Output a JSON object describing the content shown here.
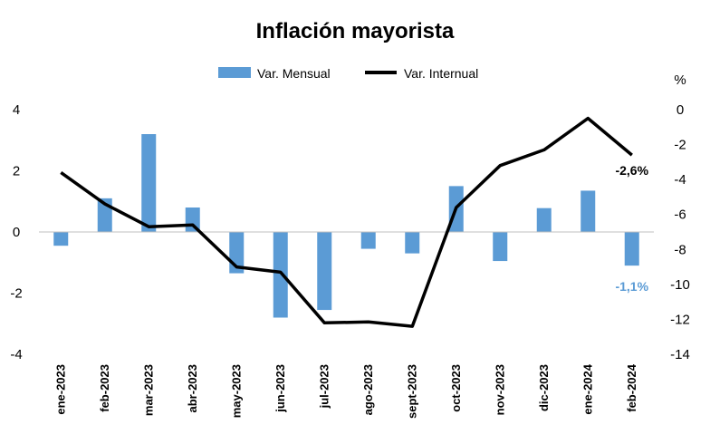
{
  "chart_data": {
    "type": "bar+line",
    "title": "Inflación mayorista",
    "categories": [
      "ene-2023",
      "feb-2023",
      "mar-2023",
      "abr-2023",
      "may-2023",
      "jun-2023",
      "jul-2023",
      "ago-2023",
      "sept-2023",
      "oct-2023",
      "nov-2023",
      "dic-2023",
      "ene-2024",
      "feb-2024"
    ],
    "series": [
      {
        "name": "Var. Mensual",
        "type": "bar",
        "axis": "left",
        "color": "#5b9bd5",
        "values": [
          -0.45,
          1.1,
          3.2,
          0.8,
          -1.35,
          -2.8,
          -2.55,
          -0.55,
          -0.7,
          1.5,
          -0.95,
          0.78,
          1.35,
          -1.1
        ]
      },
      {
        "name": "Var. Internual",
        "type": "line",
        "axis": "right",
        "color": "#000000",
        "values": [
          -3.6,
          -5.4,
          -6.7,
          -6.6,
          -9.0,
          -9.3,
          -12.2,
          -12.15,
          -12.4,
          -5.6,
          -3.2,
          -2.3,
          -0.5,
          -2.6
        ]
      }
    ],
    "y_left": {
      "min": -4,
      "max": 4,
      "ticks": [
        4,
        2,
        0,
        -2,
        -4
      ]
    },
    "y_right": {
      "min": -14,
      "max": 0,
      "ticks": [
        0,
        -2,
        -4,
        -6,
        -8,
        -10,
        -12,
        -14
      ],
      "unit_label": "%"
    },
    "annotations": [
      {
        "text": "-2,6%",
        "series": "Var. Internual",
        "index": 13,
        "color": "#000000"
      },
      {
        "text": "-1,1%",
        "series": "Var. Mensual",
        "index": 13,
        "color": "#5b9bd5"
      }
    ],
    "legend_position": "top",
    "grid": false
  }
}
